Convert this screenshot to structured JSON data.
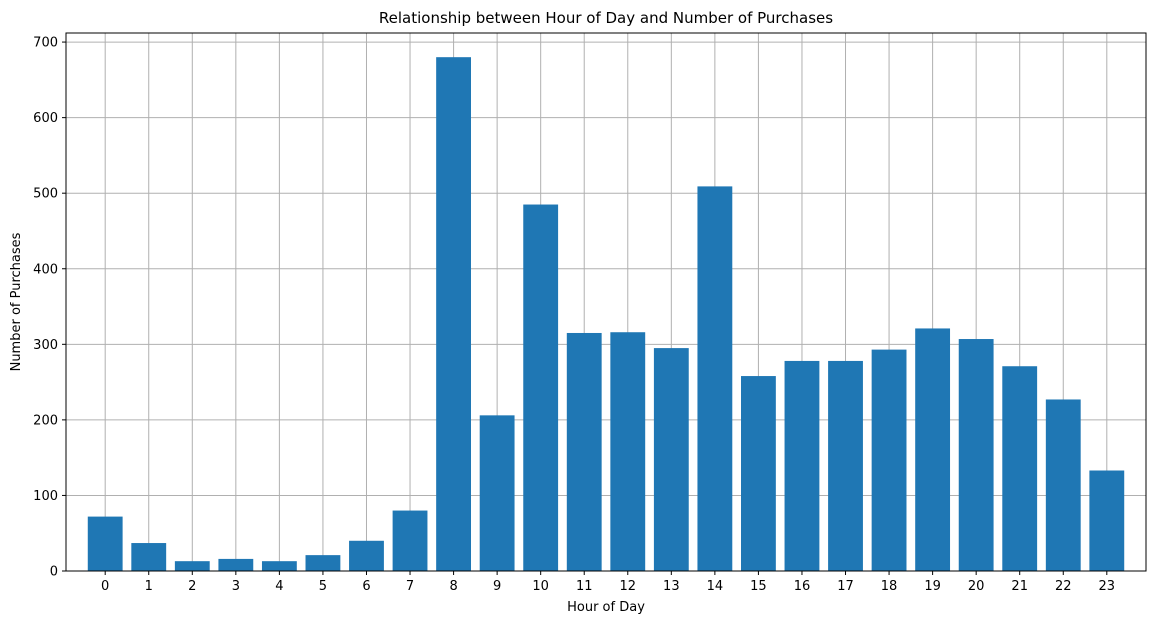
{
  "chart_data": {
    "type": "bar",
    "title": "Relationship between Hour of Day and Number of Purchases",
    "xlabel": "Hour of Day",
    "ylabel": "Number of Purchases",
    "categories": [
      "0",
      "1",
      "2",
      "3",
      "4",
      "5",
      "6",
      "7",
      "8",
      "9",
      "10",
      "11",
      "12",
      "13",
      "14",
      "15",
      "16",
      "17",
      "18",
      "19",
      "20",
      "21",
      "22",
      "23"
    ],
    "values": [
      72,
      37,
      13,
      16,
      13,
      21,
      40,
      80,
      680,
      206,
      485,
      315,
      316,
      295,
      509,
      258,
      278,
      278,
      293,
      321,
      307,
      271,
      227,
      133
    ],
    "ylim": [
      0,
      712
    ],
    "yticks": [
      0,
      100,
      200,
      300,
      400,
      500,
      600,
      700
    ],
    "grid": true,
    "bar_color": "#1f77b4"
  }
}
